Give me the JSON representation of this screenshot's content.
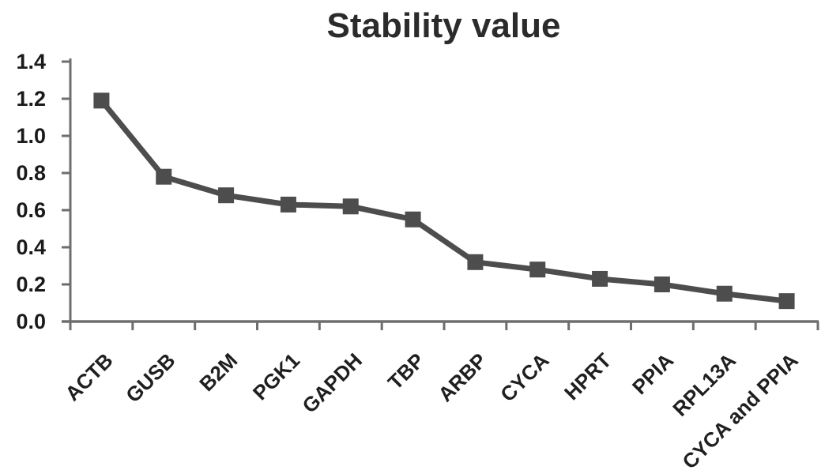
{
  "chart_data": {
    "type": "line",
    "title": "Stability value",
    "categories": [
      "ACTB",
      "GUSB",
      "B2M",
      "PGK1",
      "GAPDH",
      "TBP",
      "ARBP",
      "CYCA",
      "HPRT",
      "PPIA",
      "RPL13A",
      "CYCA and PPIA"
    ],
    "values": [
      1.19,
      0.78,
      0.68,
      0.63,
      0.62,
      0.55,
      0.32,
      0.28,
      0.23,
      0.2,
      0.15,
      0.11
    ],
    "xlabel": "",
    "ylabel": "",
    "ylim": [
      0,
      1.4
    ],
    "ytick_step": 0.2,
    "ytick_labels": [
      "0.0",
      "0.2",
      "0.4",
      "0.6",
      "0.8",
      "1.0",
      "1.2",
      "1.4"
    ],
    "grid": false,
    "legend_position": "none",
    "marker_shape": "square",
    "series_color": "#4d4d4d",
    "axis_color": "#6e6e6e",
    "tick_label_color": "#1a1a1a",
    "title_color": "#2b2b2b",
    "background_color": "#ffffff"
  }
}
